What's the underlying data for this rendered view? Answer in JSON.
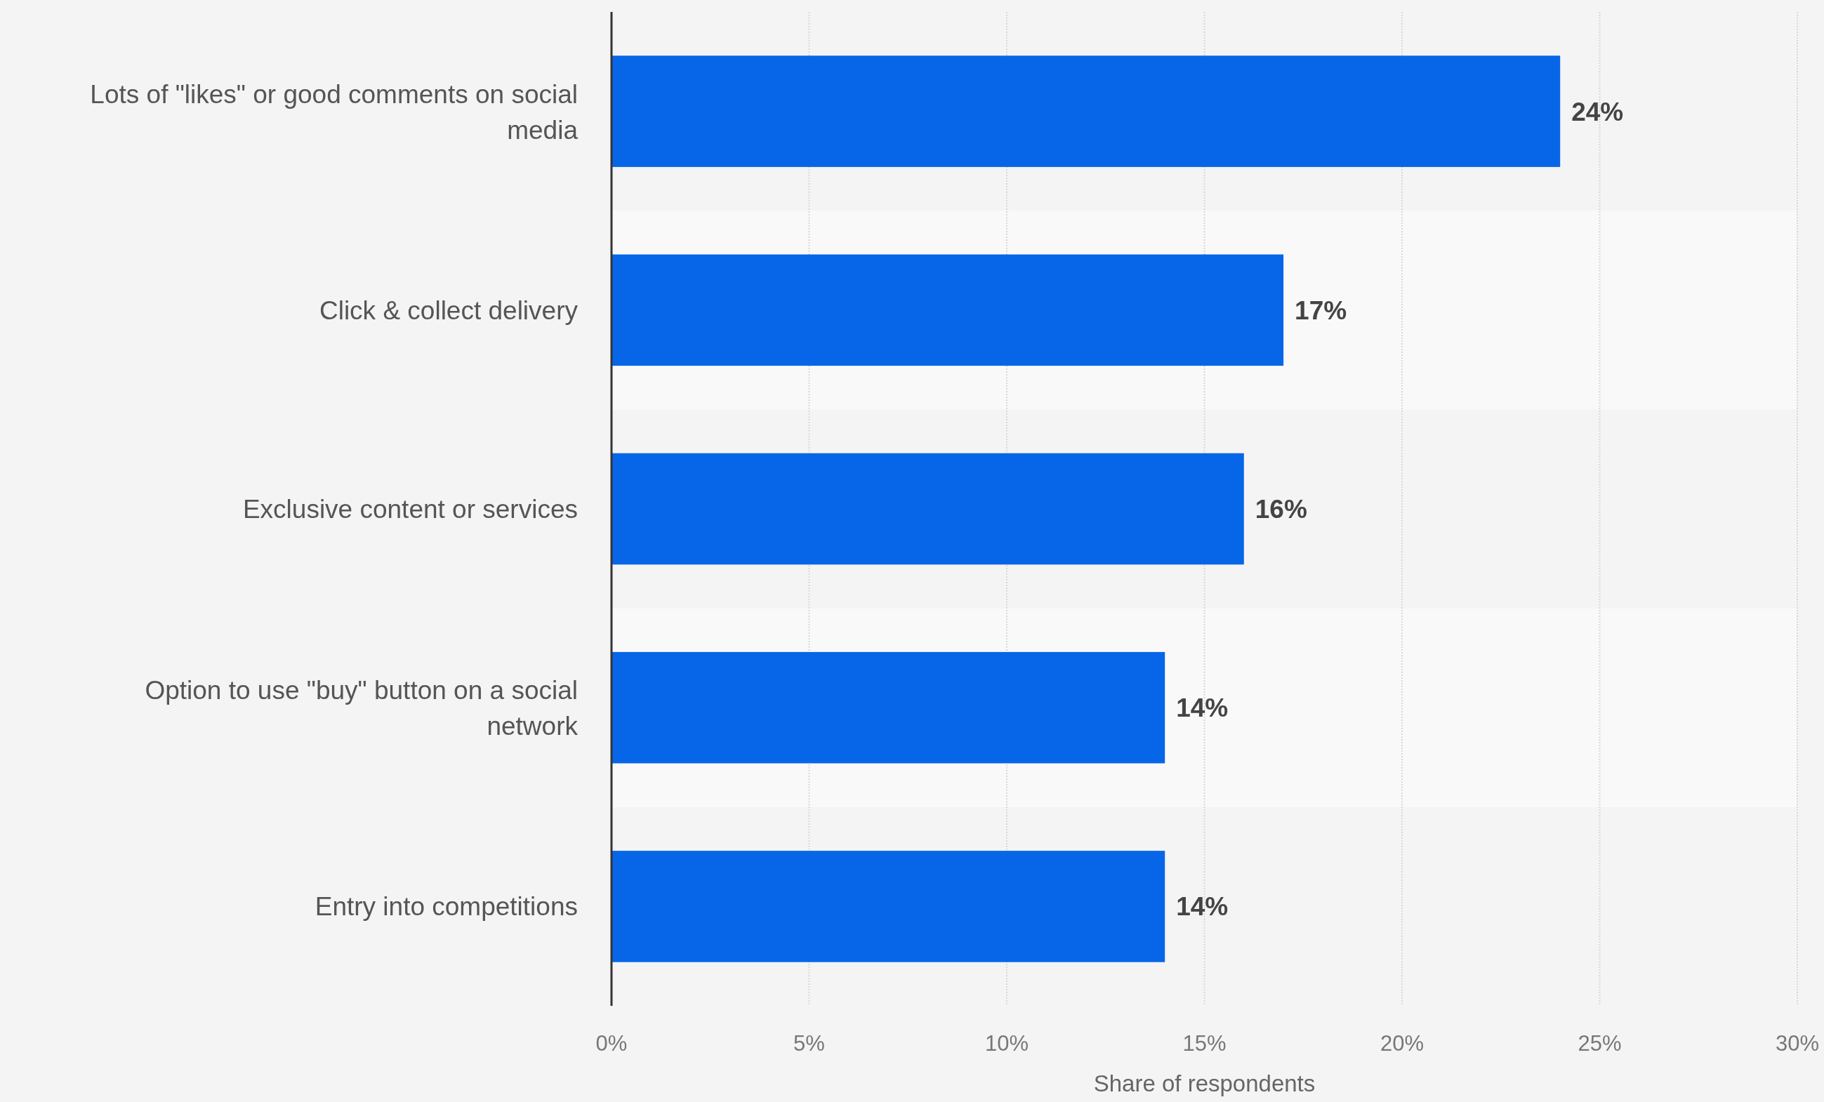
{
  "chart_data": {
    "type": "bar",
    "orientation": "horizontal",
    "categories": [
      "Lots of \"likes\" or good comments on social media",
      "Click & collect delivery",
      "Exclusive content or services",
      "Option to use \"buy\" button on a social network",
      "Entry into competitions"
    ],
    "values": [
      24,
      17,
      16,
      14,
      14
    ],
    "value_labels": [
      "24%",
      "17%",
      "16%",
      "14%",
      "14%"
    ],
    "color": "#0766e8",
    "xlabel": "Share of respondents",
    "xlim": [
      0,
      30
    ],
    "xticks": [
      {
        "value": 0,
        "label": "0%"
      },
      {
        "value": 5,
        "label": "5%"
      },
      {
        "value": 10,
        "label": "10%"
      },
      {
        "value": 15,
        "label": "15%"
      },
      {
        "value": 20,
        "label": "20%"
      },
      {
        "value": 25,
        "label": "25%"
      },
      {
        "value": 30,
        "label": "30%"
      }
    ],
    "grid": "x"
  }
}
